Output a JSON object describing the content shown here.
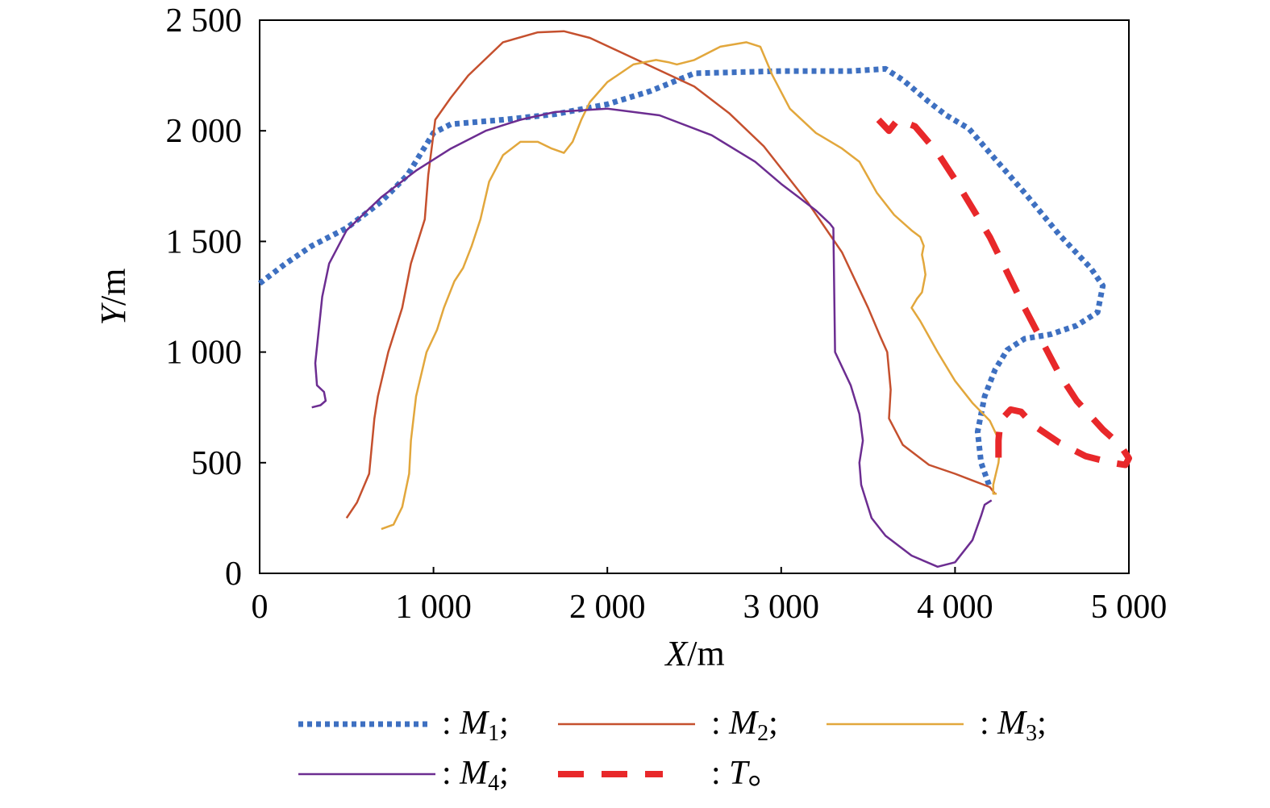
{
  "chart_data": {
    "type": "line",
    "title": "",
    "xlabel": {
      "var": "X",
      "unit": "/m"
    },
    "ylabel": {
      "var": "Y",
      "unit": "/m"
    },
    "xlim": [
      0,
      5000
    ],
    "ylim": [
      0,
      2500
    ],
    "x_ticks": [
      0,
      1000,
      2000,
      3000,
      4000,
      5000
    ],
    "y_ticks": [
      0,
      500,
      1000,
      1500,
      2000,
      2500
    ],
    "x_tick_labels": [
      "0",
      "1 000",
      "2 000",
      "3 000",
      "4 000",
      "5 000"
    ],
    "y_tick_labels": [
      "0",
      "500",
      "1 000",
      "1 500",
      "2 000",
      "2 500"
    ],
    "grid": false,
    "legend_position": "bottom",
    "series": [
      {
        "name": "M",
        "sub": "1",
        "sep": ";",
        "color": "#3e70c1",
        "style": "dotted",
        "points": [
          [
            0,
            1310
          ],
          [
            150,
            1400
          ],
          [
            300,
            1480
          ],
          [
            500,
            1560
          ],
          [
            700,
            1680
          ],
          [
            850,
            1800
          ],
          [
            1000,
            1990
          ],
          [
            1100,
            2030
          ],
          [
            1400,
            2050
          ],
          [
            1700,
            2075
          ],
          [
            2000,
            2120
          ],
          [
            2250,
            2180
          ],
          [
            2500,
            2260
          ],
          [
            3000,
            2270
          ],
          [
            3400,
            2270
          ],
          [
            3600,
            2280
          ],
          [
            3700,
            2230
          ],
          [
            3850,
            2130
          ],
          [
            3950,
            2070
          ],
          [
            4080,
            2010
          ],
          [
            4200,
            1900
          ],
          [
            4400,
            1720
          ],
          [
            4600,
            1530
          ],
          [
            4780,
            1380
          ],
          [
            4850,
            1300
          ],
          [
            4820,
            1180
          ],
          [
            4700,
            1120
          ],
          [
            4550,
            1080
          ],
          [
            4400,
            1060
          ],
          [
            4300,
            1010
          ],
          [
            4230,
            920
          ],
          [
            4170,
            800
          ],
          [
            4130,
            640
          ],
          [
            4150,
            500
          ],
          [
            4200,
            390
          ]
        ]
      },
      {
        "name": "M",
        "sub": "2",
        "sep": ";",
        "color": "#c5502e",
        "style": "solid",
        "points": [
          [
            500,
            250
          ],
          [
            560,
            320
          ],
          [
            630,
            450
          ],
          [
            660,
            700
          ],
          [
            680,
            800
          ],
          [
            740,
            1000
          ],
          [
            820,
            1200
          ],
          [
            870,
            1400
          ],
          [
            950,
            1600
          ],
          [
            970,
            1800
          ],
          [
            1010,
            2050
          ],
          [
            1100,
            2150
          ],
          [
            1200,
            2250
          ],
          [
            1400,
            2400
          ],
          [
            1600,
            2445
          ],
          [
            1750,
            2450
          ],
          [
            1900,
            2420
          ],
          [
            2200,
            2310
          ],
          [
            2500,
            2200
          ],
          [
            2700,
            2080
          ],
          [
            2900,
            1930
          ],
          [
            3150,
            1680
          ],
          [
            3350,
            1450
          ],
          [
            3500,
            1200
          ],
          [
            3570,
            1070
          ],
          [
            3610,
            1000
          ],
          [
            3630,
            830
          ],
          [
            3620,
            700
          ],
          [
            3700,
            580
          ],
          [
            3850,
            490
          ],
          [
            4000,
            450
          ],
          [
            4100,
            420
          ],
          [
            4200,
            390
          ],
          [
            4230,
            360
          ]
        ]
      },
      {
        "name": "M",
        "sub": "3",
        "sep": ";",
        "color": "#e2a73c",
        "style": "solid",
        "points": [
          [
            700,
            200
          ],
          [
            770,
            220
          ],
          [
            820,
            300
          ],
          [
            860,
            450
          ],
          [
            870,
            600
          ],
          [
            900,
            800
          ],
          [
            960,
            1000
          ],
          [
            1020,
            1100
          ],
          [
            1060,
            1200
          ],
          [
            1120,
            1320
          ],
          [
            1170,
            1380
          ],
          [
            1220,
            1480
          ],
          [
            1270,
            1600
          ],
          [
            1320,
            1770
          ],
          [
            1400,
            1890
          ],
          [
            1500,
            1950
          ],
          [
            1600,
            1950
          ],
          [
            1680,
            1920
          ],
          [
            1750,
            1900
          ],
          [
            1800,
            1950
          ],
          [
            1850,
            2050
          ],
          [
            1900,
            2130
          ],
          [
            2000,
            2220
          ],
          [
            2150,
            2300
          ],
          [
            2280,
            2320
          ],
          [
            2350,
            2310
          ],
          [
            2400,
            2300
          ],
          [
            2500,
            2320
          ],
          [
            2650,
            2380
          ],
          [
            2800,
            2400
          ],
          [
            2880,
            2380
          ],
          [
            2950,
            2250
          ],
          [
            3050,
            2100
          ],
          [
            3200,
            1990
          ],
          [
            3350,
            1920
          ],
          [
            3450,
            1860
          ],
          [
            3550,
            1720
          ],
          [
            3650,
            1620
          ],
          [
            3750,
            1550
          ],
          [
            3800,
            1520
          ],
          [
            3820,
            1480
          ],
          [
            3810,
            1440
          ],
          [
            3820,
            1400
          ],
          [
            3830,
            1350
          ],
          [
            3810,
            1270
          ],
          [
            3780,
            1240
          ],
          [
            3750,
            1200
          ],
          [
            3800,
            1140
          ],
          [
            3900,
            1000
          ],
          [
            4000,
            870
          ],
          [
            4100,
            770
          ],
          [
            4200,
            690
          ],
          [
            4260,
            590
          ],
          [
            4250,
            500
          ],
          [
            4220,
            400
          ],
          [
            4220,
            360
          ],
          [
            4240,
            360
          ]
        ]
      },
      {
        "name": "M",
        "sub": "4",
        "sep": ";",
        "color": "#6c2d91",
        "style": "solid",
        "points": [
          [
            300,
            750
          ],
          [
            350,
            760
          ],
          [
            380,
            780
          ],
          [
            370,
            820
          ],
          [
            330,
            850
          ],
          [
            320,
            950
          ],
          [
            340,
            1100
          ],
          [
            360,
            1250
          ],
          [
            400,
            1400
          ],
          [
            500,
            1550
          ],
          [
            700,
            1700
          ],
          [
            900,
            1820
          ],
          [
            1100,
            1920
          ],
          [
            1300,
            2000
          ],
          [
            1500,
            2050
          ],
          [
            1700,
            2085
          ],
          [
            2000,
            2100
          ],
          [
            2300,
            2070
          ],
          [
            2600,
            1980
          ],
          [
            2850,
            1860
          ],
          [
            3000,
            1760
          ],
          [
            3100,
            1700
          ],
          [
            3200,
            1640
          ],
          [
            3280,
            1580
          ],
          [
            3300,
            1560
          ],
          [
            3310,
            1000
          ],
          [
            3400,
            850
          ],
          [
            3450,
            720
          ],
          [
            3470,
            600
          ],
          [
            3450,
            500
          ],
          [
            3460,
            400
          ],
          [
            3520,
            250
          ],
          [
            3600,
            170
          ],
          [
            3750,
            80
          ],
          [
            3900,
            30
          ],
          [
            4000,
            50
          ],
          [
            4100,
            150
          ],
          [
            4150,
            260
          ],
          [
            4170,
            310
          ],
          [
            4210,
            330
          ]
        ]
      },
      {
        "name": "T",
        "sub": "",
        "sep": "。",
        "color": "#e8282a",
        "style": "dashed",
        "points": [
          [
            3560,
            2050
          ],
          [
            3620,
            2000
          ],
          [
            3670,
            2050
          ],
          [
            3770,
            2020
          ],
          [
            3900,
            1900
          ],
          [
            4000,
            1780
          ],
          [
            4100,
            1650
          ],
          [
            4200,
            1520
          ],
          [
            4300,
            1360
          ],
          [
            4400,
            1200
          ],
          [
            4500,
            1050
          ],
          [
            4600,
            900
          ],
          [
            4700,
            780
          ],
          [
            4850,
            650
          ],
          [
            4950,
            580
          ],
          [
            5000,
            520
          ],
          [
            4980,
            490
          ],
          [
            4900,
            500
          ],
          [
            4750,
            530
          ],
          [
            4600,
            590
          ],
          [
            4450,
            670
          ],
          [
            4380,
            730
          ],
          [
            4320,
            740
          ],
          [
            4260,
            690
          ],
          [
            4250,
            600
          ],
          [
            4250,
            480
          ]
        ]
      }
    ]
  }
}
